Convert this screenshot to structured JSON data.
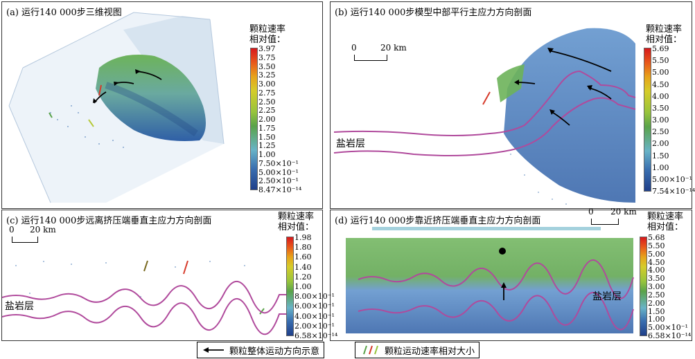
{
  "panels": {
    "a": {
      "title": "(a) 运行140 000步三维视图",
      "cb_title_1": "颗粒速率",
      "cb_title_2": "相对值：",
      "ticks": [
        "3.97",
        "3.75",
        "3.50",
        "3.25",
        "3.00",
        "2.75",
        "2.50",
        "2.25",
        "2.00",
        "1.75",
        "1.50",
        "1.25",
        "1.00",
        "7.50×10⁻¹",
        "5.00×10⁻¹",
        "2.50×10⁻¹",
        "8.47×10⁻¹⁴"
      ]
    },
    "b": {
      "title": "(b) 运行140 000步模型中部平行主应力方向剖面",
      "cb_title_1": "颗粒速率",
      "cb_title_2": "相对值：",
      "scale": [
        "0",
        "20 km"
      ],
      "salt_label": "盐岩层",
      "ticks": [
        "5.69",
        "5.50",
        "5.00",
        "4.50",
        "4.00",
        "3.50",
        "3.00",
        "2.50",
        "2.00",
        "1.50",
        "1.00",
        "5.00×10⁻¹",
        "7.54×10⁻¹⁴"
      ]
    },
    "c": {
      "title": "(c) 运行140 000步远离挤压端垂直主应力方向剖面",
      "cb_title_1": "颗粒速率",
      "cb_title_2": "相对值：",
      "scale": [
        "0",
        "20 km"
      ],
      "salt_label": "盐岩层",
      "ticks": [
        "1.98",
        "1.80",
        "1.60",
        "1.40",
        "1.20",
        "1.00",
        "8.00×10⁻¹",
        "6.00×10⁻¹",
        "4.00×10⁻¹",
        "2.00×10⁻¹",
        "6.58×10⁻¹⁴"
      ]
    },
    "d": {
      "title": "(d) 运行140 000步靠近挤压端垂直主应力方向剖面",
      "cb_title_1": "颗粒速率",
      "cb_title_2": "相对值：",
      "scale": [
        "0",
        "20 km"
      ],
      "salt_label": "盐岩层",
      "ticks": [
        "5.68",
        "5.50",
        "5.00",
        "4.50",
        "4.00",
        "3.50",
        "3.00",
        "2.50",
        "2.00",
        "1.50",
        "1.00",
        "5.00×10⁻¹",
        "6.58×10⁻¹⁴"
      ]
    }
  },
  "legend": {
    "direction_label": "颗粒整体运动方向示意",
    "velocity_label": "颗粒运动速率相对大小"
  },
  "colors": {
    "salt_line": "#b04a9c",
    "particle_blue": "#3a6fb0",
    "particle_green": "#5aa34a",
    "box": "#c9d9ea"
  }
}
